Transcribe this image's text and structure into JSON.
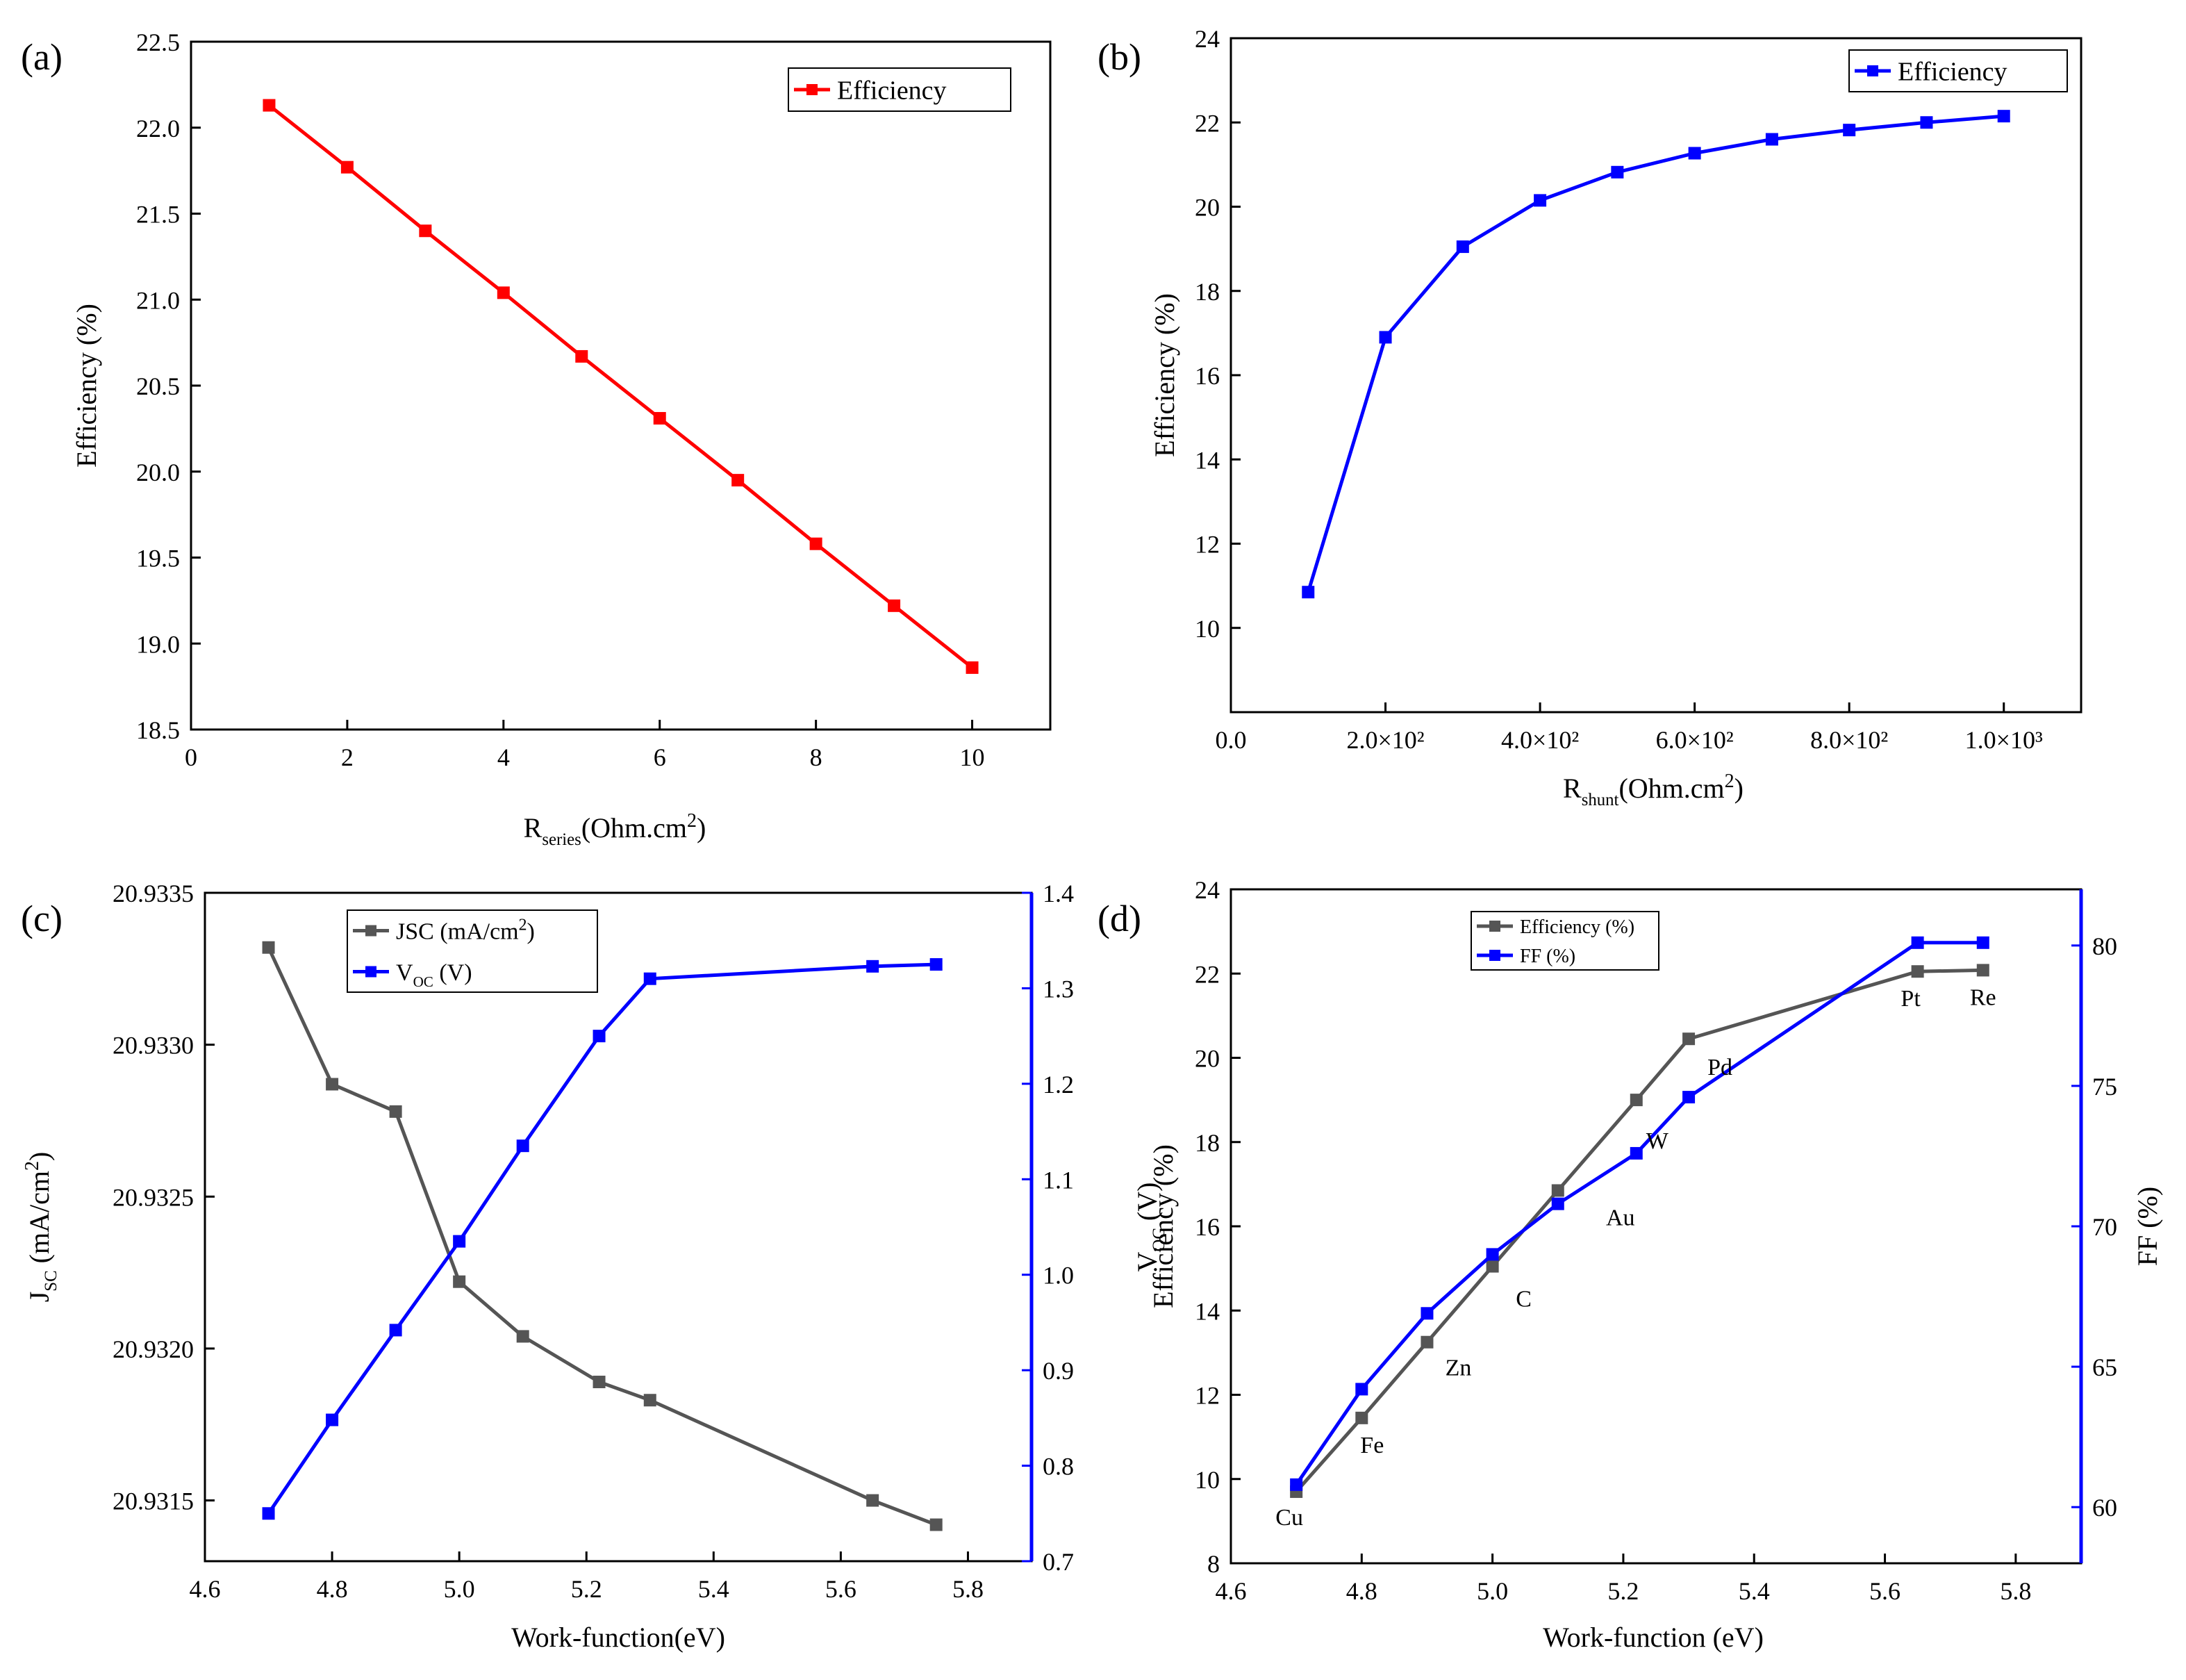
{
  "figure": {
    "panels": [
      {
        "id": "a",
        "label": "(a)"
      },
      {
        "id": "b",
        "label": "(b)"
      },
      {
        "id": "c",
        "label": "(c)"
      },
      {
        "id": "d",
        "label": "(d)"
      }
    ]
  },
  "chart_data": [
    {
      "id": "a",
      "type": "line",
      "panel_label": "(a)",
      "title": "",
      "xlabel": {
        "main": "R",
        "sub": "series",
        "rest": "(Ohm.cm",
        "sup": "2",
        "tail": ")"
      },
      "ylabel": "Efficiency (%)",
      "xlim": [
        0,
        11
      ],
      "ylim": [
        18.5,
        22.5
      ],
      "xticks": [
        0,
        2,
        4,
        6,
        8,
        10
      ],
      "xtick_labels": [
        "0",
        "2",
        "4",
        "6",
        "8",
        "10"
      ],
      "yticks": [
        18.5,
        19.0,
        19.5,
        20.0,
        20.5,
        21.0,
        21.5,
        22.0,
        22.5
      ],
      "ytick_labels": [
        "18.5",
        "19.0",
        "19.5",
        "20.0",
        "20.5",
        "21.0",
        "21.5",
        "22.0",
        "22.5"
      ],
      "legend_position": "top-right",
      "series": [
        {
          "name": "Efficiency",
          "color": "#ff0000",
          "marker": "square",
          "x": [
            1,
            2,
            3,
            4,
            5,
            6,
            7,
            8,
            9,
            10
          ],
          "y": [
            22.13,
            21.77,
            21.4,
            21.04,
            20.67,
            20.31,
            19.95,
            19.58,
            19.22,
            18.86
          ]
        }
      ]
    },
    {
      "id": "b",
      "type": "line",
      "panel_label": "(b)",
      "title": "",
      "xlabel": {
        "main": "R",
        "sub": "shunt",
        "rest": "(Ohm.cm",
        "sup": "2",
        "tail": ")"
      },
      "ylabel": "Efficiency (%)",
      "xlim": [
        0,
        1100
      ],
      "ylim": [
        8,
        24
      ],
      "xticks": [
        0,
        200,
        400,
        600,
        800,
        1000
      ],
      "xtick_labels": [
        "0.0",
        "2.0×10²",
        "4.0×10²",
        "6.0×10²",
        "8.0×10²",
        "1.0×10³"
      ],
      "yticks": [
        10,
        12,
        14,
        16,
        18,
        20,
        22,
        24
      ],
      "ytick_labels": [
        "10",
        "12",
        "14",
        "16",
        "18",
        "20",
        "22",
        "24"
      ],
      "legend_position": "top-right",
      "series": [
        {
          "name": "Efficiency",
          "color": "#0000ff",
          "marker": "square",
          "x": [
            100,
            200,
            300,
            400,
            500,
            600,
            700,
            800,
            900,
            1000
          ],
          "y": [
            10.85,
            16.9,
            19.05,
            20.15,
            20.82,
            21.27,
            21.6,
            21.82,
            22.0,
            22.15
          ]
        }
      ]
    },
    {
      "id": "c",
      "type": "line",
      "panel_label": "(c)",
      "title": "",
      "xlabel": "Work-function(eV)",
      "ylabel_left": {
        "main": "J",
        "sub": "SC",
        "rest": " (mA/cm",
        "sup": "2",
        "tail": ")"
      },
      "ylabel_right": {
        "main": "V",
        "sub": "OC",
        "rest": " (V)"
      },
      "xlim": [
        4.6,
        5.9
      ],
      "ylim_left": [
        20.9313,
        20.9335
      ],
      "ylim_right": [
        0.7,
        1.4
      ],
      "xticks": [
        4.6,
        4.8,
        5.0,
        5.2,
        5.4,
        5.6,
        5.8
      ],
      "xtick_labels": [
        "4.6",
        "4.8",
        "5.0",
        "5.2",
        "5.4",
        "5.6",
        "5.8"
      ],
      "yticks_left": [
        20.9315,
        20.932,
        20.9325,
        20.933,
        20.9335
      ],
      "ytick_labels_left": [
        "20.9315",
        "20.9320",
        "20.9325",
        "20.9330",
        "20.9335"
      ],
      "yticks_right": [
        0.7,
        0.8,
        0.9,
        1.0,
        1.1,
        1.2,
        1.3,
        1.4
      ],
      "ytick_labels_right": [
        "0.7",
        "0.8",
        "0.9",
        "1.0",
        "1.1",
        "1.2",
        "1.3",
        "1.4"
      ],
      "legend_position": "top-center",
      "series": [
        {
          "name": "JSC (mA/cm²)",
          "axis": "left",
          "color": "#555555",
          "marker": "square",
          "x": [
            4.7,
            4.8,
            4.9,
            5.0,
            5.1,
            5.22,
            5.3,
            5.65,
            5.75
          ],
          "y": [
            20.93332,
            20.93287,
            20.93278,
            20.93222,
            20.93204,
            20.93189,
            20.93183,
            20.9315,
            20.93142
          ]
        },
        {
          "name": "VOC (V)",
          "axis": "right",
          "color": "#0000ff",
          "marker": "square",
          "x": [
            4.7,
            4.8,
            4.9,
            5.0,
            5.1,
            5.22,
            5.3,
            5.65,
            5.75
          ],
          "y": [
            0.75,
            0.848,
            0.942,
            1.035,
            1.135,
            1.25,
            1.31,
            1.323,
            1.325
          ]
        }
      ]
    },
    {
      "id": "d",
      "type": "line",
      "panel_label": "(d)",
      "title": "",
      "xlabel": "Work-function (eV)",
      "ylabel_left": "Efficiency (%)",
      "ylabel_right": "FF (%)",
      "xlim": [
        4.6,
        5.9
      ],
      "ylim_left": [
        8,
        24
      ],
      "ylim_right": [
        58,
        82
      ],
      "xticks": [
        4.6,
        4.8,
        5.0,
        5.2,
        5.4,
        5.6,
        5.8
      ],
      "xtick_labels": [
        "4.6",
        "4.8",
        "5.0",
        "5.2",
        "5.4",
        "5.6",
        "5.8"
      ],
      "yticks_left": [
        8,
        10,
        12,
        14,
        16,
        18,
        20,
        22,
        24
      ],
      "ytick_labels_left": [
        "8",
        "10",
        "12",
        "14",
        "16",
        "18",
        "20",
        "22",
        "24"
      ],
      "yticks_right": [
        60,
        65,
        70,
        75,
        80
      ],
      "ytick_labels_right": [
        "60",
        "65",
        "70",
        "75",
        "80"
      ],
      "legend_position": "top-center",
      "series": [
        {
          "name": "Efficiency (%)",
          "axis": "left",
          "color": "#555555",
          "marker": "square",
          "x": [
            4.7,
            4.8,
            4.9,
            5.0,
            5.1,
            5.22,
            5.3,
            5.65,
            5.75
          ],
          "y": [
            9.7,
            11.45,
            13.25,
            15.05,
            16.85,
            19.0,
            20.45,
            22.05,
            22.08
          ]
        },
        {
          "name": "FF (%)",
          "axis": "right",
          "color": "#0000ff",
          "marker": "square",
          "x": [
            4.7,
            4.8,
            4.9,
            5.0,
            5.1,
            5.22,
            5.3,
            5.65,
            5.75
          ],
          "y": [
            60.8,
            64.2,
            66.9,
            69.0,
            70.8,
            72.6,
            74.6,
            80.1,
            80.1
          ]
        }
      ],
      "annotations": [
        "Cu",
        "Fe",
        "Zn",
        "C",
        "Au",
        "W",
        "Pd",
        "Pt",
        "Re"
      ]
    }
  ]
}
